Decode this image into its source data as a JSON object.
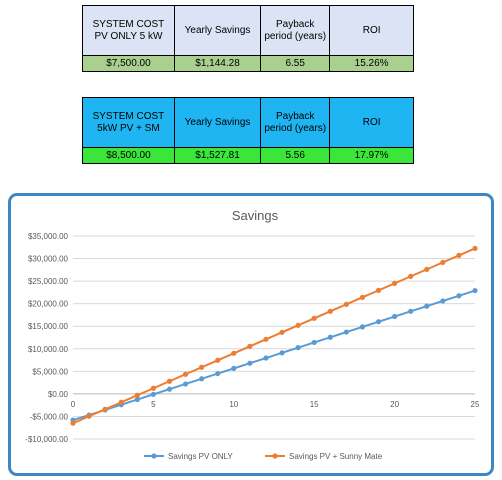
{
  "table1": {
    "headers": [
      "SYSTEM COST PV ONLY 5 kW",
      "Yearly Savings",
      "Payback period (years)",
      "ROI"
    ],
    "values": [
      "$7,500.00",
      "$1,144.28",
      "6.55",
      "15.26%"
    ]
  },
  "table2": {
    "headers": [
      "SYSTEM COST 5kW PV + SM",
      "Yearly Savings",
      "Payback period (years)",
      "ROI"
    ],
    "values": [
      "$8,500.00",
      "$1,527.81",
      "5.56",
      "17.97%"
    ]
  },
  "colors": {
    "table1_header": "#dce3f4",
    "table1_values": "#a9d08e",
    "table2_header": "#1fb5f2",
    "table2_values": "#3ae63a",
    "frame": "#3f86c8"
  },
  "chart_data": {
    "type": "line",
    "title": "Savings",
    "xlabel": "",
    "ylabel": "",
    "x": [
      0,
      1,
      2,
      3,
      4,
      5,
      6,
      7,
      8,
      9,
      10,
      11,
      12,
      13,
      14,
      15,
      16,
      17,
      18,
      19,
      20,
      21,
      22,
      23,
      24,
      25
    ],
    "xlim": [
      0,
      25
    ],
    "ylim": [
      -10000,
      35000
    ],
    "xticks": [
      0,
      5,
      10,
      15,
      20,
      25
    ],
    "yticks": [
      -10000,
      -5000,
      0,
      5000,
      10000,
      15000,
      20000,
      25000,
      30000,
      35000
    ],
    "ytick_labels": [
      "-$10,000.00",
      "-$5,000.00",
      "$0.00",
      "$5,000.00",
      "$10,000.00",
      "$15,000.00",
      "$20,000.00",
      "$25,000.00",
      "$30,000.00",
      "$35,000.00"
    ],
    "grid": true,
    "legend_position": "bottom",
    "series": [
      {
        "name": "Savings PV ONLY",
        "color": "#5b9bd5",
        "values": [
          -5800,
          -4700,
          -3550,
          -2400,
          -1250,
          -100,
          1050,
          2200,
          3350,
          4500,
          5650,
          6800,
          7950,
          9100,
          10250,
          11400,
          12550,
          13700,
          14850,
          16000,
          17150,
          18300,
          19450,
          20600,
          21750,
          22900
        ]
      },
      {
        "name": "Savings PV + Sunny Mate",
        "color": "#ed7d31",
        "values": [
          -6500,
          -4950,
          -3400,
          -1850,
          -300,
          1250,
          2800,
          4350,
          5900,
          7450,
          9000,
          10550,
          12100,
          13650,
          15200,
          16750,
          18300,
          19850,
          21400,
          22950,
          24500,
          26050,
          27600,
          29150,
          30700,
          32250
        ]
      }
    ]
  }
}
